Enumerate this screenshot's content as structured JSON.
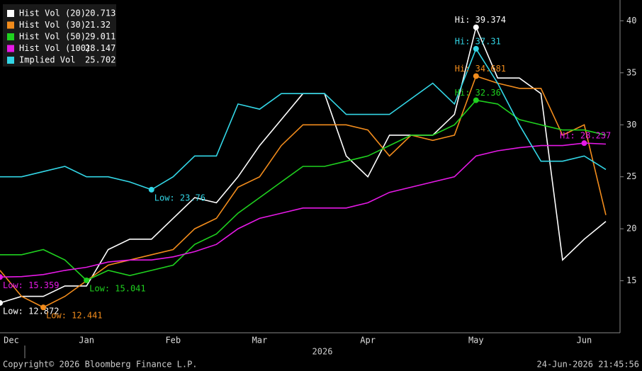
{
  "chart_data": {
    "type": "line",
    "categories": [
      "Dec",
      null,
      null,
      null,
      "Jan",
      null,
      null,
      null,
      "Feb",
      null,
      null,
      null,
      "Mar",
      null,
      null,
      null,
      null,
      "Apr",
      null,
      null,
      null,
      null,
      "May",
      null,
      null,
      null,
      null,
      "Jun",
      null
    ],
    "x_label": "2026",
    "ylim": [
      10,
      42
    ],
    "yticks": [
      15,
      20,
      25,
      30,
      35,
      40
    ],
    "series": [
      {
        "name": "Hist Vol (20)",
        "last": 20.713,
        "color": "#ffffff",
        "values": [
          12.872,
          13.5,
          13.5,
          14.5,
          14.5,
          18,
          19,
          19,
          21,
          23,
          22.5,
          25,
          28,
          30.5,
          33,
          33,
          27,
          25,
          29,
          29,
          29,
          31,
          39.374,
          34.5,
          34.5,
          33,
          17,
          19,
          20.713
        ]
      },
      {
        "name": "Hist Vol (30)",
        "last": 21.32,
        "color": "#f28c1c",
        "values": [
          16,
          13.5,
          12.441,
          13.5,
          15,
          16.5,
          17,
          17.5,
          18,
          20,
          21,
          24,
          25,
          28,
          30,
          30,
          30,
          29.5,
          27,
          29,
          28.5,
          29,
          34.681,
          34,
          33.5,
          33.5,
          29,
          30,
          21.32
        ]
      },
      {
        "name": "Hist Vol (50)",
        "last": 29.011,
        "color": "#1fd11f",
        "values": [
          17.5,
          17.5,
          18,
          17,
          15.041,
          16,
          15.5,
          16,
          16.5,
          18.5,
          19.5,
          21.5,
          23,
          24.5,
          26,
          26,
          26.5,
          27,
          28,
          29,
          29,
          30,
          32.36,
          32,
          30.5,
          30,
          29.5,
          29.5,
          29.011
        ]
      },
      {
        "name": "Hist Vol (100)",
        "last": 28.147,
        "color": "#e619e6",
        "values": [
          15.359,
          15.4,
          15.6,
          16,
          16.3,
          16.8,
          17,
          17,
          17.3,
          17.8,
          18.5,
          20,
          21,
          21.5,
          22,
          22,
          22,
          22.5,
          23.5,
          24,
          24.5,
          25,
          27,
          27.5,
          27.8,
          28,
          28,
          28.237,
          28.147
        ]
      },
      {
        "name": "Implied Vol",
        "last": 25.702,
        "color": "#33d6e6",
        "values": [
          25,
          25,
          25.5,
          26,
          25,
          25,
          24.5,
          23.76,
          25,
          27,
          27,
          32,
          31.5,
          33,
          33,
          33,
          31,
          31,
          31,
          32.5,
          34,
          32,
          37.31,
          34,
          30,
          26.5,
          26.5,
          27,
          25.702
        ]
      }
    ],
    "annotations": [
      {
        "text": "Low: 12.872",
        "series": 0,
        "index": 0
      },
      {
        "text": "Low: 12.441",
        "series": 1,
        "index": 2
      },
      {
        "text": "Low: 15.359",
        "series": 3,
        "index": 0
      },
      {
        "text": "Low: 15.041",
        "series": 2,
        "index": 4
      },
      {
        "text": "Low: 23.76",
        "series": 4,
        "index": 7
      },
      {
        "text": "Hi: 39.374",
        "series": 0,
        "index": 22
      },
      {
        "text": "Hi: 37.31",
        "series": 4,
        "index": 22
      },
      {
        "text": "Hi: 34.681",
        "series": 1,
        "index": 22
      },
      {
        "text": "Hi: 32.36",
        "series": 2,
        "index": 22
      },
      {
        "text": "Hi: 28.237",
        "series": 3,
        "index": 27
      }
    ]
  },
  "footer": {
    "copyright": "Copyright© 2026 Bloomberg Finance L.P.",
    "timestamp": "24-Jun-2026 21:45:56"
  }
}
